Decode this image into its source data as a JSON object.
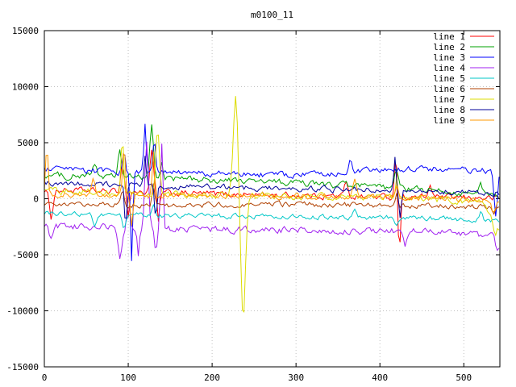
{
  "chart_data": {
    "type": "line",
    "title": "m0100_11",
    "xlabel": "",
    "ylabel": "",
    "x_range": [
      0,
      543
    ],
    "y_range": [
      -15000,
      15000
    ],
    "x_ticks": [
      0,
      100,
      200,
      300,
      400,
      500
    ],
    "y_ticks": [
      -15000,
      -10000,
      -5000,
      0,
      5000,
      10000,
      15000
    ],
    "grid": "dotted",
    "legend_position": "top-right",
    "series": [
      {
        "name": "line 1",
        "color": "#ff0000",
        "noise": 280,
        "trend": [
          [
            0,
            800
          ],
          [
            150,
            500
          ],
          [
            300,
            300
          ],
          [
            420,
            150
          ],
          [
            543,
            50
          ]
        ],
        "spikes": [
          {
            "x": 8,
            "v": -1800,
            "w": 3
          },
          {
            "x": 93,
            "v": 3000,
            "w": 3
          },
          {
            "x": 100,
            "v": -1600,
            "w": 2
          },
          {
            "x": 128,
            "v": 4200,
            "w": 3
          },
          {
            "x": 136,
            "v": -2200,
            "w": 2
          },
          {
            "x": 360,
            "v": 1500,
            "w": 3
          },
          {
            "x": 419,
            "v": 4400,
            "w": 2
          },
          {
            "x": 423,
            "v": -4700,
            "w": 2
          },
          {
            "x": 460,
            "v": 1200,
            "w": 3
          }
        ]
      },
      {
        "name": "line 2",
        "color": "#00a000",
        "noise": 300,
        "trend": [
          [
            0,
            2100
          ],
          [
            150,
            1800
          ],
          [
            300,
            1400
          ],
          [
            450,
            800
          ],
          [
            543,
            250
          ]
        ],
        "spikes": [
          {
            "x": 60,
            "v": 3300,
            "w": 3
          },
          {
            "x": 90,
            "v": 4300,
            "w": 3
          },
          {
            "x": 128,
            "v": 6500,
            "w": 3
          },
          {
            "x": 140,
            "v": 3500,
            "w": 2
          },
          {
            "x": 420,
            "v": 2500,
            "w": 3
          },
          {
            "x": 520,
            "v": 1200,
            "w": 3
          }
        ]
      },
      {
        "name": "line 3",
        "color": "#0000ff",
        "noise": 280,
        "trend": [
          [
            0,
            2600
          ],
          [
            150,
            2300
          ],
          [
            300,
            2100
          ],
          [
            450,
            2700
          ],
          [
            543,
            2400
          ]
        ],
        "spikes": [
          {
            "x": 95,
            "v": 4500,
            "w": 2
          },
          {
            "x": 104,
            "v": -5600,
            "w": 2
          },
          {
            "x": 120,
            "v": 6600,
            "w": 2
          },
          {
            "x": 131,
            "v": 5400,
            "w": 2
          },
          {
            "x": 365,
            "v": 3800,
            "w": 3
          },
          {
            "x": 538,
            "v": -1600,
            "w": 3
          }
        ]
      },
      {
        "name": "line 4",
        "color": "#a020f0",
        "noise": 300,
        "trend": [
          [
            0,
            -2400
          ],
          [
            150,
            -2700
          ],
          [
            300,
            -2800
          ],
          [
            450,
            -2900
          ],
          [
            543,
            -3400
          ]
        ],
        "spikes": [
          {
            "x": 8,
            "v": -3600,
            "w": 3
          },
          {
            "x": 90,
            "v": -5400,
            "w": 3
          },
          {
            "x": 100,
            "v": 600,
            "w": 2
          },
          {
            "x": 112,
            "v": -5000,
            "w": 2
          },
          {
            "x": 122,
            "v": 5200,
            "w": 3
          },
          {
            "x": 133,
            "v": -4600,
            "w": 2
          },
          {
            "x": 140,
            "v": 4800,
            "w": 2
          },
          {
            "x": 430,
            "v": -4300,
            "w": 3
          },
          {
            "x": 540,
            "v": -4600,
            "w": 3
          }
        ]
      },
      {
        "name": "line 5",
        "color": "#00c7c7",
        "noise": 220,
        "trend": [
          [
            0,
            -1300
          ],
          [
            150,
            -1500
          ],
          [
            300,
            -1600
          ],
          [
            450,
            -1700
          ],
          [
            543,
            -2000
          ]
        ],
        "spikes": [
          {
            "x": 60,
            "v": -2300,
            "w": 3
          },
          {
            "x": 95,
            "v": -2600,
            "w": 3
          },
          {
            "x": 130,
            "v": -500,
            "w": 3
          },
          {
            "x": 370,
            "v": -800,
            "w": 3
          },
          {
            "x": 420,
            "v": -2400,
            "w": 2
          },
          {
            "x": 520,
            "v": -1200,
            "w": 3
          }
        ]
      },
      {
        "name": "line 6",
        "color": "#b04000",
        "noise": 240,
        "trend": [
          [
            0,
            -400
          ],
          [
            150,
            -600
          ],
          [
            300,
            -500
          ],
          [
            450,
            -600
          ],
          [
            543,
            -800
          ]
        ],
        "spikes": [
          {
            "x": 93,
            "v": 900,
            "w": 3
          },
          {
            "x": 130,
            "v": 1500,
            "w": 2
          },
          {
            "x": 420,
            "v": 700,
            "w": 2
          },
          {
            "x": 535,
            "v": -1500,
            "w": 3
          }
        ]
      },
      {
        "name": "line 7",
        "color": "#dcdc00",
        "noise": 300,
        "trend": [
          [
            0,
            700
          ],
          [
            150,
            400
          ],
          [
            300,
            200
          ],
          [
            450,
            0
          ],
          [
            520,
            -300
          ],
          [
            543,
            -2600
          ]
        ],
        "spikes": [
          {
            "x": 93,
            "v": 5800,
            "w": 2
          },
          {
            "x": 135,
            "v": 6300,
            "w": 3
          },
          {
            "x": 228,
            "v": 9200,
            "w": 4
          },
          {
            "x": 237,
            "v": -10400,
            "w": 4
          },
          {
            "x": 420,
            "v": 1800,
            "w": 2
          },
          {
            "x": 537,
            "v": -3000,
            "w": 3
          }
        ]
      },
      {
        "name": "line 8",
        "color": "#000099",
        "noise": 260,
        "trend": [
          [
            0,
            1400
          ],
          [
            150,
            1100
          ],
          [
            300,
            900
          ],
          [
            450,
            700
          ],
          [
            543,
            500
          ]
        ],
        "spikes": [
          {
            "x": 97,
            "v": -2800,
            "w": 2
          },
          {
            "x": 120,
            "v": 3600,
            "w": 2
          },
          {
            "x": 133,
            "v": -1800,
            "w": 2
          },
          {
            "x": 418,
            "v": 3800,
            "w": 2
          },
          {
            "x": 424,
            "v": -1500,
            "w": 2
          }
        ]
      },
      {
        "name": "line 9",
        "color": "#ff9900",
        "noise": 260,
        "trend": [
          [
            0,
            400
          ],
          [
            150,
            300
          ],
          [
            300,
            250
          ],
          [
            450,
            100
          ],
          [
            543,
            -300
          ]
        ],
        "spikes": [
          {
            "x": 3,
            "v": 5000,
            "w": 2
          },
          {
            "x": 58,
            "v": 1800,
            "w": 3
          },
          {
            "x": 95,
            "v": 5100,
            "w": 2
          },
          {
            "x": 104,
            "v": -2200,
            "w": 2
          },
          {
            "x": 130,
            "v": 4500,
            "w": 2
          },
          {
            "x": 370,
            "v": 1500,
            "w": 3
          },
          {
            "x": 420,
            "v": 1200,
            "w": 2
          },
          {
            "x": 535,
            "v": -1200,
            "w": 3
          }
        ]
      }
    ],
    "colors": {
      "background": "#ffffff",
      "border": "#000000",
      "grid": "#c0c0c0",
      "text": "#000000"
    }
  }
}
